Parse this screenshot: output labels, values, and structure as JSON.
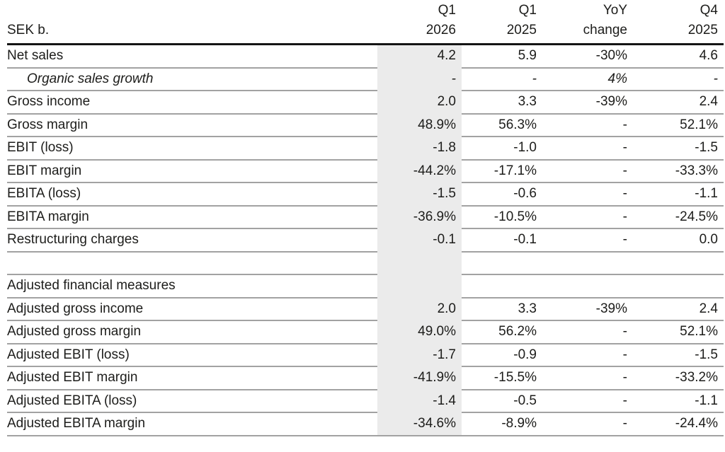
{
  "table": {
    "unit_label": "SEK b.",
    "columns": [
      {
        "id": "q1-2026",
        "line1": "Q1",
        "line2": "2026",
        "highlighted": true
      },
      {
        "id": "q1-2025",
        "line1": "Q1",
        "line2": "2025",
        "highlighted": false
      },
      {
        "id": "yoy-change",
        "line1": "YoY",
        "line2": "change",
        "highlighted": false
      },
      {
        "id": "q4-2025",
        "line1": "Q4",
        "line2": "2025",
        "highlighted": false
      }
    ],
    "rows": [
      {
        "label": "Net sales",
        "type": "data",
        "values": [
          "4.2",
          "5.9",
          "-30%",
          "4.6"
        ]
      },
      {
        "label": "Organic sales growth",
        "type": "data",
        "style": "italic-indent",
        "values": [
          "-",
          "-",
          "4%",
          "-"
        ]
      },
      {
        "label": "Gross income",
        "type": "data",
        "values": [
          "2.0",
          "3.3",
          "-39%",
          "2.4"
        ]
      },
      {
        "label": "Gross margin",
        "type": "data",
        "values": [
          "48.9%",
          "56.3%",
          "-",
          "52.1%"
        ]
      },
      {
        "label": "EBIT (loss)",
        "type": "data",
        "values": [
          "-1.8",
          "-1.0",
          "-",
          "-1.5"
        ]
      },
      {
        "label": "EBIT margin",
        "type": "data",
        "values": [
          "-44.2%",
          "-17.1%",
          "-",
          "-33.3%"
        ]
      },
      {
        "label": "EBITA (loss)",
        "type": "data",
        "values": [
          "-1.5",
          "-0.6",
          "-",
          "-1.1"
        ]
      },
      {
        "label": "EBITA margin",
        "type": "data",
        "values": [
          "-36.9%",
          "-10.5%",
          "-",
          "-24.5%"
        ]
      },
      {
        "label": "Restructuring charges",
        "type": "data",
        "values": [
          "-0.1",
          "-0.1",
          "-",
          "0.0"
        ]
      },
      {
        "label": "",
        "type": "blank",
        "values": [
          "",
          "",
          "",
          ""
        ]
      },
      {
        "label": "Adjusted financial measures",
        "type": "section",
        "values": [
          "",
          "",
          "",
          ""
        ]
      },
      {
        "label": "Adjusted gross income",
        "type": "data",
        "values": [
          "2.0",
          "3.3",
          "-39%",
          "2.4"
        ]
      },
      {
        "label": "Adjusted gross margin",
        "type": "data",
        "values": [
          "49.0%",
          "56.2%",
          "-",
          "52.1%"
        ]
      },
      {
        "label": "Adjusted EBIT (loss)",
        "type": "data",
        "values": [
          "-1.7",
          "-0.9",
          "-",
          "-1.5"
        ]
      },
      {
        "label": "Adjusted EBIT margin",
        "type": "data",
        "values": [
          "-41.9%",
          "-15.5%",
          "-",
          "-33.2%"
        ]
      },
      {
        "label": "Adjusted EBITA (loss)",
        "type": "data",
        "values": [
          "-1.4",
          "-0.5",
          "-",
          "-1.1"
        ]
      },
      {
        "label": "Adjusted EBITA margin",
        "type": "data",
        "values": [
          "-34.6%",
          "-8.9%",
          "-",
          "-24.4%"
        ]
      }
    ],
    "colors": {
      "highlight_column": "#ebebeb",
      "header_rule": "#141414",
      "row_rule": "#a2a2a2",
      "text": "#1d1d1b"
    }
  }
}
